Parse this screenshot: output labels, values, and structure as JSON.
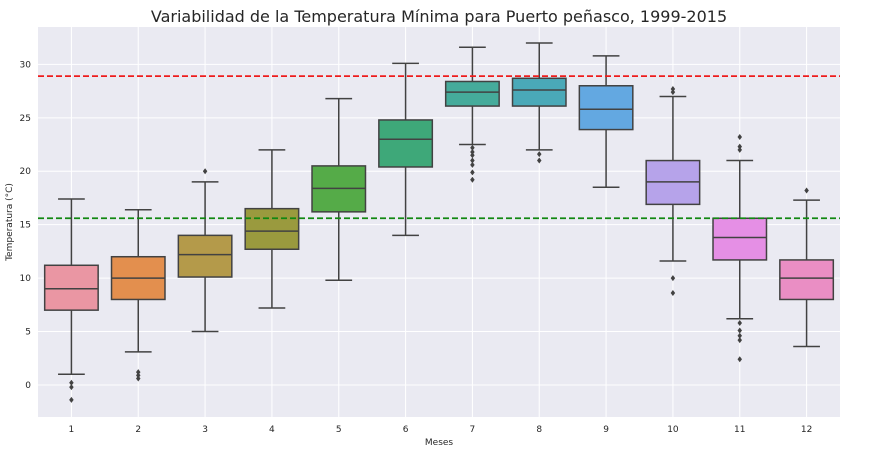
{
  "chart_data": {
    "type": "box",
    "title": "Variabilidad de la Temperatura Mínima para Puerto peñasco, 1999-2015",
    "xlabel": "Meses",
    "ylabel": "Temperatura (°C)",
    "ylim": [
      -3,
      33.5
    ],
    "yticks": [
      0,
      5,
      10,
      15,
      20,
      25,
      30
    ],
    "grid": true,
    "categories": [
      "1",
      "2",
      "3",
      "4",
      "5",
      "6",
      "7",
      "8",
      "9",
      "10",
      "11",
      "12"
    ],
    "colors": [
      "#ea96a3",
      "#e38f4e",
      "#b49a4a",
      "#9a9a3e",
      "#55ab48",
      "#3ea879",
      "#45ab9b",
      "#4aa9b8",
      "#63a8e1",
      "#b6a3ea",
      "#e58fe5",
      "#ea8ec4"
    ],
    "boxes": [
      {
        "whislo": 1.0,
        "q1": 7.0,
        "med": 9.0,
        "q3": 11.2,
        "whishi": 17.4,
        "fliers": [
          0.2,
          -0.2,
          -1.4
        ]
      },
      {
        "whislo": 3.1,
        "q1": 8.0,
        "med": 10.0,
        "q3": 12.0,
        "whishi": 16.4,
        "fliers": [
          1.2,
          0.9,
          0.6
        ]
      },
      {
        "whislo": 5.0,
        "q1": 10.1,
        "med": 12.2,
        "q3": 14.0,
        "whishi": 19.0,
        "fliers": [
          20.0
        ]
      },
      {
        "whislo": 7.2,
        "q1": 12.7,
        "med": 14.4,
        "q3": 16.5,
        "whishi": 22.0,
        "fliers": []
      },
      {
        "whislo": 9.8,
        "q1": 16.2,
        "med": 18.4,
        "q3": 20.5,
        "whishi": 26.8,
        "fliers": []
      },
      {
        "whislo": 14.0,
        "q1": 20.4,
        "med": 23.0,
        "q3": 24.8,
        "whishi": 30.1,
        "fliers": []
      },
      {
        "whislo": 22.5,
        "q1": 26.1,
        "med": 27.4,
        "q3": 28.4,
        "whishi": 31.6,
        "fliers": [
          22.2,
          21.8,
          21.5,
          21.0,
          20.6,
          19.9,
          19.2
        ]
      },
      {
        "whislo": 22.0,
        "q1": 26.1,
        "med": 27.6,
        "q3": 28.7,
        "whishi": 32.0,
        "fliers": [
          21.6,
          21.0
        ]
      },
      {
        "whislo": 18.5,
        "q1": 23.9,
        "med": 25.8,
        "q3": 28.0,
        "whishi": 30.8,
        "fliers": []
      },
      {
        "whislo": 11.6,
        "q1": 16.9,
        "med": 19.0,
        "q3": 21.0,
        "whishi": 27.0,
        "fliers": [
          27.7,
          27.4,
          10.0,
          8.6
        ]
      },
      {
        "whislo": 6.2,
        "q1": 11.7,
        "med": 13.8,
        "q3": 15.6,
        "whishi": 21.0,
        "fliers": [
          23.2,
          22.3,
          22.0,
          5.8,
          5.1,
          4.6,
          4.2,
          2.4
        ]
      },
      {
        "whislo": 3.6,
        "q1": 8.0,
        "med": 10.0,
        "q3": 11.7,
        "whishi": 17.3,
        "fliers": [
          18.2
        ]
      }
    ],
    "reference_lines": [
      {
        "y": 28.9,
        "color": "#ee1c1c",
        "style": "dashed"
      },
      {
        "y": 15.6,
        "color": "#118811",
        "style": "dashed"
      }
    ]
  }
}
